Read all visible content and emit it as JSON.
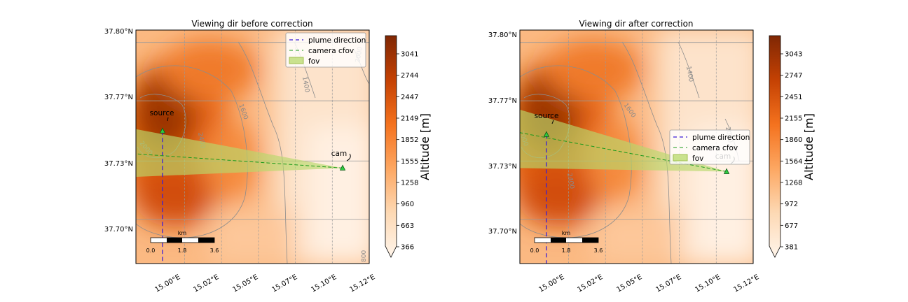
{
  "chart_data": [
    {
      "type": "map",
      "title": "Viewing dir before correction",
      "lon_ticks": [
        "15.00°E",
        "15.02°E",
        "15.05°E",
        "15.07°E",
        "15.10°E",
        "15.12°E"
      ],
      "lat_ticks": [
        "37.80°N",
        "37.77°N",
        "37.73°N",
        "37.70°N"
      ],
      "lon_range": [
        14.967,
        15.125
      ],
      "lat_range": [
        37.675,
        37.807
      ],
      "colorbar": {
        "label": "Altitude [m]",
        "ticks": [
          "3041",
          "2744",
          "2447",
          "2149",
          "1852",
          "1555",
          "1258",
          "960",
          "663",
          "366"
        ],
        "range": [
          366,
          3300
        ],
        "colormap": "Oranges"
      },
      "legend": {
        "placement": "top-right",
        "entries": [
          "plume direction",
          "camera cfov",
          "fov"
        ]
      },
      "annotations": {
        "source": "source",
        "cam": "cam"
      },
      "contour_labels": [
        "1400",
        "1600",
        "2000",
        "2400",
        "2000",
        "800"
      ],
      "scalebar": {
        "unit": "km",
        "labels": [
          "0.0",
          "1.8",
          "3.6"
        ]
      },
      "points": {
        "source": {
          "lon": 14.985,
          "lat": 37.75
        },
        "cam": {
          "lon": 15.107,
          "lat": 37.729
        }
      },
      "plume_direction_lon": 14.985,
      "cfov_end": {
        "lon": 14.967,
        "lat": 37.737
      },
      "fov_left_lat": [
        37.724,
        37.751
      ]
    },
    {
      "type": "map",
      "title": "Viewing dir after correction",
      "lon_ticks": [
        "15.00°E",
        "15.02°E",
        "15.05°E",
        "15.07°E",
        "15.10°E",
        "15.12°E"
      ],
      "lat_ticks": [
        "37.80°N",
        "37.77°N",
        "37.73°N",
        "37.70°N"
      ],
      "lon_range": [
        14.967,
        15.125
      ],
      "lat_range": [
        37.675,
        37.807
      ],
      "colorbar": {
        "label": "Altitude [m]",
        "ticks": [
          "3043",
          "2747",
          "2451",
          "2155",
          "1860",
          "1564",
          "1268",
          "972",
          "677",
          "381"
        ],
        "range": [
          381,
          3300
        ],
        "colormap": "Oranges"
      },
      "legend": {
        "placement": "center-right",
        "entries": [
          "plume direction",
          "camera cfov",
          "fov"
        ]
      },
      "annotations": {
        "source": "source",
        "cam": "cam"
      },
      "contour_labels": [
        "1400",
        "1600",
        "2000",
        "2400",
        "2000"
      ],
      "scalebar": {
        "unit": "km",
        "labels": [
          "0.0",
          "1.8",
          "3.6"
        ]
      },
      "points": {
        "source": {
          "lon": 14.985,
          "lat": 37.748
        },
        "cam": {
          "lon": 15.107,
          "lat": 37.727
        }
      },
      "plume_direction_lon": 14.985,
      "cfov_end": {
        "lon": 14.967,
        "lat": 37.749
      },
      "fov_left_lat": [
        37.729,
        37.762
      ]
    }
  ],
  "colors": {
    "plume_direction": "#3b1fd6",
    "camera_cfov": "#1a9a1a",
    "fov_fill": "#b8d96b",
    "marker": "#2ecc40",
    "grid": "#999999",
    "contour": "#8c8c8c"
  }
}
